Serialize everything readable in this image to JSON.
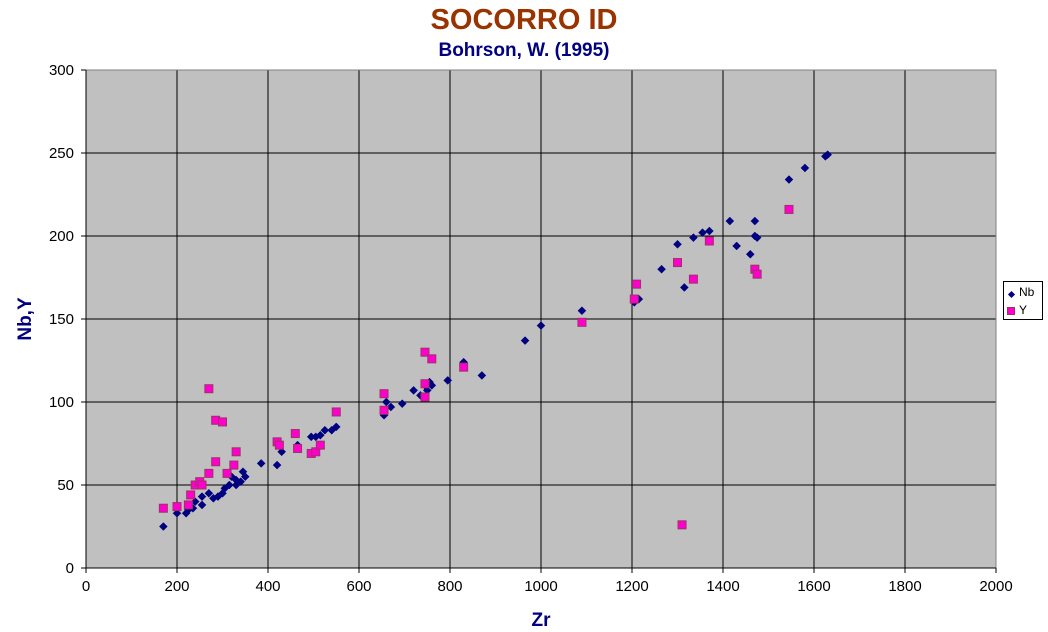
{
  "chart_data": {
    "type": "scatter",
    "title": "SOCORRO ID",
    "subtitle": "Bohrson, W. (1995)",
    "xlabel": "Zr",
    "ylabel": "Nb,Y",
    "xlim": [
      0,
      2000
    ],
    "ylim": [
      0,
      300
    ],
    "xticks": [
      0,
      200,
      400,
      600,
      800,
      1000,
      1200,
      1400,
      1600,
      1800,
      2000
    ],
    "yticks": [
      0,
      50,
      100,
      150,
      200,
      250,
      300
    ],
    "grid": true,
    "legend_position": "right",
    "plot_background": "#c0c0c0",
    "series": [
      {
        "name": "Nb",
        "marker": "diamond",
        "color": "#000080",
        "points": [
          [
            170,
            25
          ],
          [
            200,
            33
          ],
          [
            220,
            33
          ],
          [
            225,
            35
          ],
          [
            235,
            36
          ],
          [
            240,
            40
          ],
          [
            255,
            38
          ],
          [
            255,
            43
          ],
          [
            270,
            45
          ],
          [
            280,
            42
          ],
          [
            290,
            43
          ],
          [
            300,
            45
          ],
          [
            305,
            48
          ],
          [
            315,
            50
          ],
          [
            320,
            55
          ],
          [
            330,
            50
          ],
          [
            330,
            53
          ],
          [
            340,
            52
          ],
          [
            345,
            58
          ],
          [
            350,
            55
          ],
          [
            385,
            63
          ],
          [
            420,
            62
          ],
          [
            430,
            70
          ],
          [
            465,
            74
          ],
          [
            495,
            79
          ],
          [
            505,
            79
          ],
          [
            515,
            80
          ],
          [
            525,
            83
          ],
          [
            540,
            83
          ],
          [
            550,
            85
          ],
          [
            655,
            92
          ],
          [
            660,
            100
          ],
          [
            670,
            97
          ],
          [
            695,
            99
          ],
          [
            720,
            107
          ],
          [
            735,
            104
          ],
          [
            745,
            110
          ],
          [
            750,
            107
          ],
          [
            755,
            112
          ],
          [
            760,
            110
          ],
          [
            795,
            113
          ],
          [
            830,
            124
          ],
          [
            870,
            116
          ],
          [
            965,
            137
          ],
          [
            1000,
            146
          ],
          [
            1090,
            155
          ],
          [
            1205,
            160
          ],
          [
            1215,
            162
          ],
          [
            1265,
            180
          ],
          [
            1300,
            195
          ],
          [
            1315,
            169
          ],
          [
            1335,
            199
          ],
          [
            1355,
            202
          ],
          [
            1370,
            203
          ],
          [
            1415,
            209
          ],
          [
            1430,
            194
          ],
          [
            1460,
            189
          ],
          [
            1470,
            209
          ],
          [
            1470,
            200
          ],
          [
            1475,
            199
          ],
          [
            1545,
            234
          ],
          [
            1580,
            241
          ],
          [
            1625,
            248
          ],
          [
            1630,
            249
          ]
        ]
      },
      {
        "name": "Y",
        "marker": "square",
        "color": "#ff00cc",
        "points": [
          [
            170,
            36
          ],
          [
            200,
            37
          ],
          [
            225,
            38
          ],
          [
            230,
            44
          ],
          [
            240,
            50
          ],
          [
            250,
            52
          ],
          [
            255,
            50
          ],
          [
            270,
            57
          ],
          [
            270,
            108
          ],
          [
            285,
            64
          ],
          [
            285,
            89
          ],
          [
            300,
            88
          ],
          [
            310,
            57
          ],
          [
            325,
            62
          ],
          [
            330,
            70
          ],
          [
            420,
            76
          ],
          [
            425,
            74
          ],
          [
            460,
            81
          ],
          [
            465,
            72
          ],
          [
            495,
            69
          ],
          [
            505,
            70
          ],
          [
            515,
            74
          ],
          [
            550,
            94
          ],
          [
            655,
            95
          ],
          [
            655,
            105
          ],
          [
            745,
            111
          ],
          [
            745,
            130
          ],
          [
            745,
            103
          ],
          [
            760,
            126
          ],
          [
            830,
            121
          ],
          [
            1090,
            148
          ],
          [
            1205,
            162
          ],
          [
            1210,
            171
          ],
          [
            1300,
            184
          ],
          [
            1310,
            26
          ],
          [
            1335,
            174
          ],
          [
            1370,
            197
          ],
          [
            1470,
            180
          ],
          [
            1475,
            177
          ],
          [
            1545,
            216
          ]
        ]
      }
    ]
  }
}
